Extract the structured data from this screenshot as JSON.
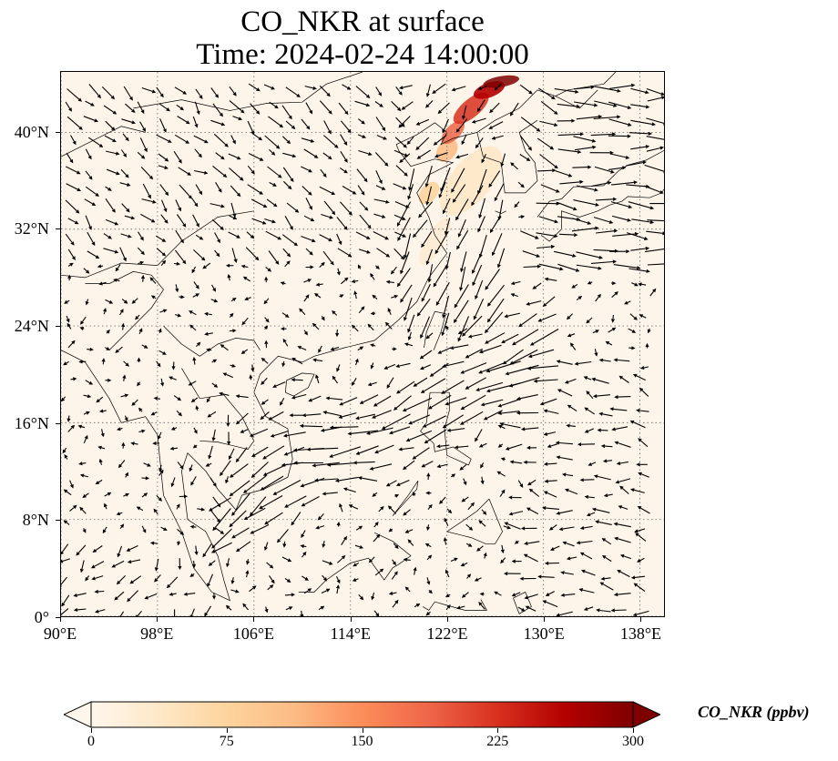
{
  "title": {
    "line1": "CO_NKR at surface",
    "line2": "Time: 2024-02-24 14:00:00"
  },
  "map": {
    "projection": "PlateCarree",
    "extent": {
      "lon_min": 90,
      "lon_max": 140,
      "lat_min": 0,
      "lat_max": 45
    },
    "gridlines": "dotted",
    "lat_ticks": [
      {
        "value": 0,
        "label": "0°"
      },
      {
        "value": 8,
        "label": "8°N"
      },
      {
        "value": 16,
        "label": "16°N"
      },
      {
        "value": 24,
        "label": "24°N"
      },
      {
        "value": 32,
        "label": "32°N"
      },
      {
        "value": 40,
        "label": "40°N"
      }
    ],
    "lon_ticks": [
      {
        "value": 90,
        "label": "90°E"
      },
      {
        "value": 98,
        "label": "98°E"
      },
      {
        "value": 106,
        "label": "106°E"
      },
      {
        "value": 114,
        "label": "114°E"
      },
      {
        "value": 122,
        "label": "122°E"
      },
      {
        "value": 130,
        "label": "130°E"
      },
      {
        "value": 138,
        "label": "138°E"
      }
    ],
    "background_color": "#fdf5e9",
    "vector_color": "#000000",
    "coastline_color": "#000000"
  },
  "colorbar": {
    "label": "CO_NKR (ppbv)",
    "min": 0,
    "max": 300,
    "extend": "both",
    "colormap": "OrRd",
    "ticks": [
      {
        "value": 0,
        "label": "0"
      },
      {
        "value": 75,
        "label": "75"
      },
      {
        "value": 150,
        "label": "150"
      },
      {
        "value": 225,
        "label": "225"
      },
      {
        "value": 300,
        "label": "300"
      }
    ],
    "stops": [
      "#fff7ec",
      "#fee8c8",
      "#fdd49e",
      "#fdbb84",
      "#fc8d59",
      "#ef6548",
      "#d7301f",
      "#b30000",
      "#7f0000"
    ]
  }
}
